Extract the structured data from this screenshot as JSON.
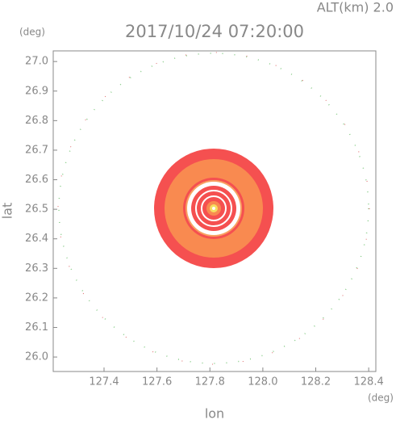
{
  "chart_data": {
    "type": "radar-image",
    "title": "2017/10/24 07:20:00",
    "subtitle": "ALT(km)  2.0",
    "x_label": "lon",
    "y_label": "lat",
    "x_unit": "(deg)",
    "y_unit": "(deg)",
    "xlim": [
      127.208,
      128.427
    ],
    "ylim": [
      25.951,
      27.036
    ],
    "xticks": [
      127.4,
      127.6,
      127.8,
      {
        "value": 128,
        "label": "128.0"
      },
      128.2,
      128.4
    ],
    "yticks": [
      {
        "value": 26,
        "label": "26.0"
      },
      26.1,
      26.2,
      26.3,
      26.4,
      26.5,
      26.6,
      26.7,
      26.8,
      26.9,
      {
        "value": 27,
        "label": "27.0"
      }
    ]
  }
}
